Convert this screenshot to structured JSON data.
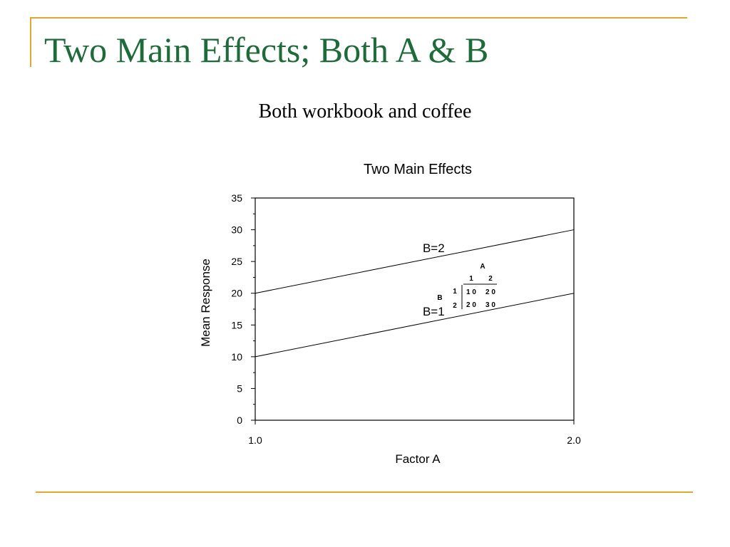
{
  "slide": {
    "title": "Two Main Effects; Both A & B",
    "subtitle": "Both workbook and coffee",
    "accent_color": "#e0a830",
    "title_color": "#1e6b3a"
  },
  "chart_data": {
    "type": "line",
    "title": "Two Main Effects",
    "xlabel": "Factor A",
    "ylabel": "Mean Response",
    "xlim": [
      1.0,
      2.0
    ],
    "ylim": [
      0,
      35
    ],
    "x_ticks": [
      "1.0",
      "2.0"
    ],
    "y_ticks": [
      0,
      5,
      10,
      15,
      20,
      25,
      30,
      35
    ],
    "grid": false,
    "legend": "none",
    "series": [
      {
        "name": "B=1",
        "x": [
          1.0,
          2.0
        ],
        "values": [
          10,
          20
        ]
      },
      {
        "name": "B=2",
        "x": [
          1.0,
          2.0
        ],
        "values": [
          20,
          30
        ]
      }
    ],
    "inset_table": {
      "col_factor": "A",
      "row_factor": "B",
      "col_headers": [
        "1",
        "2"
      ],
      "rows": [
        {
          "label": "1",
          "cells": [
            "1 0",
            "2 0"
          ]
        },
        {
          "label": "2",
          "cells": [
            "2 0",
            "3 0"
          ]
        }
      ]
    }
  }
}
